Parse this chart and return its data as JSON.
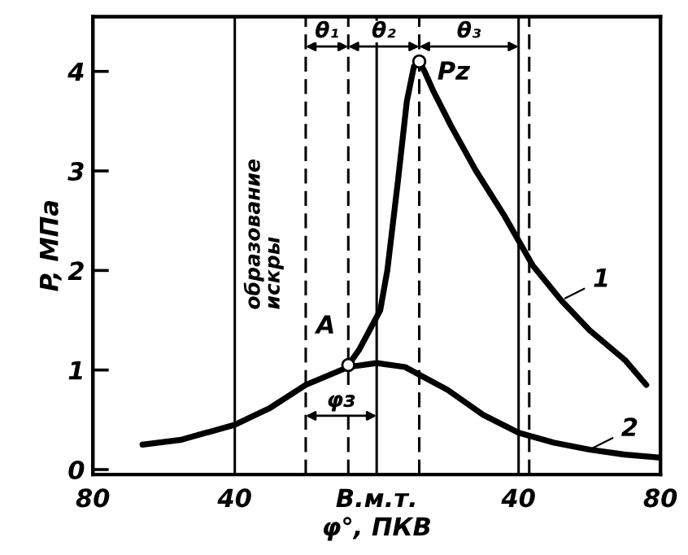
{
  "chart_data": {
    "type": "line",
    "xlabel": "φ°, ПКВ",
    "ylabel": "P, МПа",
    "xlim": [
      -80,
      80
    ],
    "ylim": [
      -0.05,
      4.55
    ],
    "xticks": [
      {
        "value": -80,
        "label": "80"
      },
      {
        "value": -40,
        "label": "40"
      },
      {
        "value": 0,
        "label": "В.м.т."
      },
      {
        "value": 40,
        "label": "40"
      },
      {
        "value": 80,
        "label": "80"
      }
    ],
    "yticks": [
      0,
      1,
      2,
      3,
      4
    ],
    "series": [
      {
        "name": "1",
        "color": "#000000",
        "x": [
          -8,
          -5,
          -2,
          1,
          3,
          6,
          8.5,
          10.5,
          12,
          13.5,
          16,
          21,
          28,
          36,
          44,
          52,
          60,
          70,
          76
        ],
        "values": [
          1.05,
          1.2,
          1.4,
          1.6,
          2.0,
          2.9,
          3.7,
          4.05,
          4.1,
          4.0,
          3.8,
          3.45,
          3.0,
          2.55,
          2.05,
          1.7,
          1.4,
          1.1,
          0.85
        ]
      },
      {
        "name": "2",
        "color": "#000000",
        "x": [
          -66,
          -55,
          -40,
          -30,
          -20,
          -8,
          0,
          8,
          20,
          30,
          40,
          50,
          60,
          70,
          80
        ],
        "values": [
          0.25,
          0.3,
          0.45,
          0.62,
          0.85,
          1.03,
          1.07,
          1.03,
          0.8,
          0.55,
          0.37,
          0.27,
          0.2,
          0.15,
          0.12
        ]
      }
    ],
    "ref_lines": [
      {
        "axis": "x",
        "value": -40,
        "label": "образование\nискры",
        "line_style": "solid"
      },
      {
        "axis": "x",
        "value": -20,
        "line_style": "dashed"
      },
      {
        "axis": "x",
        "value": -8,
        "line_style": "dashed"
      },
      {
        "axis": "x",
        "value": 0,
        "line_style": "solid"
      },
      {
        "axis": "x",
        "value": 12,
        "line_style": "dashed"
      },
      {
        "axis": "x",
        "value": 40,
        "line_style": "solid"
      },
      {
        "axis": "x",
        "value": 43,
        "line_style": "dashed"
      }
    ],
    "annotations": [
      {
        "text": "Pz",
        "x": 12,
        "y": 4.1
      },
      {
        "text": "A",
        "x": -8,
        "y": 1.05
      },
      {
        "text": "θ₁",
        "x": -8,
        "y": 4.25
      },
      {
        "text": "θ₂",
        "x": 12,
        "y": 4.25
      },
      "θ₃",
      {
        "text": "φз",
        "x": 0,
        "y": 0.54
      }
    ],
    "legend": "right",
    "grid": false,
    "line_style": "solid",
    "marker": "none"
  }
}
